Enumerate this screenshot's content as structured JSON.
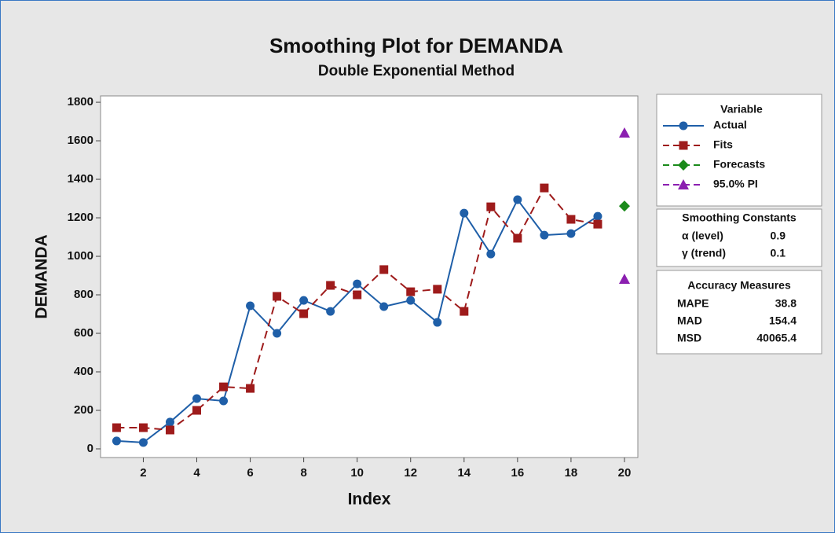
{
  "chart_data": {
    "type": "line",
    "title": "Smoothing Plot for DEMANDA",
    "subtitle": "Double Exponential Method",
    "x_label": "Index",
    "y_label": "DEMANDA",
    "xlim": [
      0.4,
      20.5
    ],
    "ylim": [
      -45,
      1833
    ],
    "xticks": [
      2,
      4,
      6,
      8,
      10,
      12,
      14,
      16,
      18,
      20
    ],
    "yticks": [
      0,
      200,
      400,
      600,
      800,
      1000,
      1200,
      1400,
      1600,
      1800
    ],
    "legend_title": "Variable",
    "series": [
      {
        "name": "Actual",
        "color": "#1f5fa8",
        "marker": "circle",
        "line_style": "solid",
        "x": [
          1,
          2,
          3,
          4,
          5,
          6,
          7,
          8,
          9,
          10,
          11,
          12,
          13,
          14,
          15,
          16,
          17,
          18,
          19
        ],
        "values": [
          41,
          33,
          139,
          261,
          249,
          743,
          600,
          771,
          714,
          857,
          739,
          771,
          657,
          1224,
          1012,
          1294,
          1110,
          1118,
          1208
        ]
      },
      {
        "name": "Fits",
        "color": "#9e1b1b",
        "marker": "square",
        "line_style": "dashed",
        "x": [
          1,
          2,
          3,
          4,
          5,
          6,
          7,
          8,
          9,
          10,
          11,
          12,
          13,
          14,
          15,
          16,
          17,
          18,
          19
        ],
        "values": [
          110,
          110,
          98,
          200,
          322,
          314,
          792,
          702,
          849,
          800,
          931,
          816,
          829,
          714,
          1257,
          1094,
          1355,
          1192,
          1167
        ]
      },
      {
        "name": "Forecasts",
        "color": "#1a8a1a",
        "marker": "diamond",
        "line_style": "dashed",
        "x": [
          20
        ],
        "values": [
          1261
        ]
      },
      {
        "name": "95.0% PI",
        "color": "#8b1fb0",
        "marker": "triangle",
        "line_style": "dashed",
        "x": [
          20,
          20
        ],
        "values": [
          1641,
          882
        ]
      }
    ],
    "smoothing_constants": {
      "title": "Smoothing Constants",
      "rows": [
        {
          "label": "α (level)",
          "value": "0.9"
        },
        {
          "label": "γ (trend)",
          "value": "0.1"
        }
      ]
    },
    "accuracy_measures": {
      "title": "Accuracy Measures",
      "rows": [
        {
          "label": "MAPE",
          "value": "38.8"
        },
        {
          "label": "MAD",
          "value": "154.4"
        },
        {
          "label": "MSD",
          "value": "40065.4"
        }
      ]
    }
  }
}
